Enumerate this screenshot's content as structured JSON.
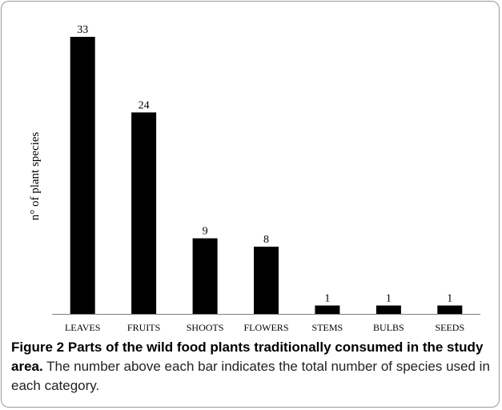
{
  "chart_data": {
    "type": "bar",
    "categories": [
      "LEAVES",
      "FRUITS",
      "SHOOTS",
      "FLOWERS",
      "STEMS",
      "BULBS",
      "SEEDS"
    ],
    "values": [
      33,
      24,
      9,
      8,
      1,
      1,
      1
    ],
    "data_labels": [
      "33",
      "24",
      "9",
      "8",
      "1",
      "1",
      "1"
    ],
    "xlabel": "",
    "ylabel": "n° of plant species",
    "ylim": [
      0,
      35
    ],
    "bar_color": "#000000",
    "grid": false,
    "legend": false
  },
  "caption": {
    "label": "Figure 2",
    "title": "Parts of the wild food plants traditionally consumed in the study area.",
    "description": "The number above each bar indicates the total number of species used in each category."
  },
  "colors": {
    "frame_border": "#9a9a9a",
    "bars": "#000000",
    "axis": "#7f7f7f"
  }
}
